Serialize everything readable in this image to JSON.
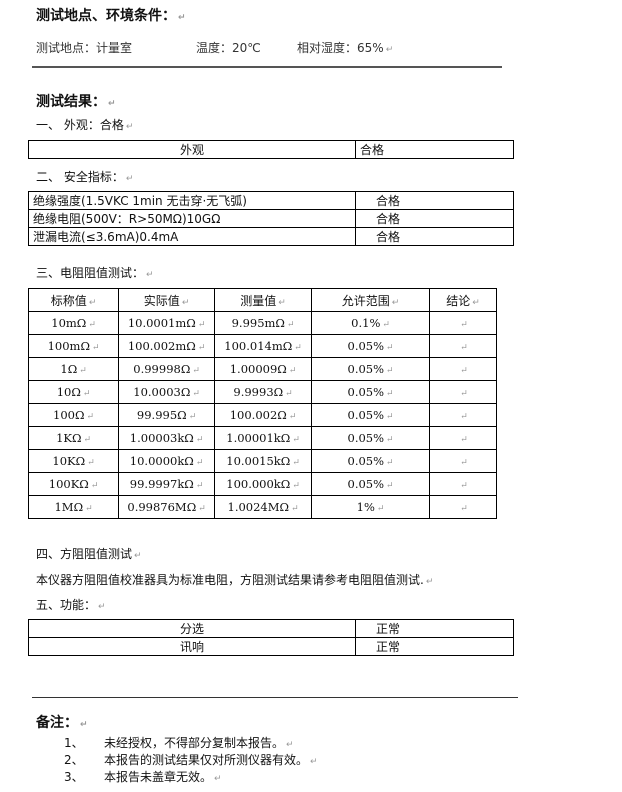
{
  "env": {
    "heading": "测试地点、环境条件：",
    "location": "测试地点：计量室",
    "temperature": "温度：20℃",
    "humidity": "相对湿度：65%"
  },
  "results": {
    "heading": "测试结果：",
    "appearance": {
      "title": "一、  外观：合格",
      "row": [
        "外观",
        "合格"
      ]
    },
    "safety": {
      "title": "二、  安全指标：",
      "rows": [
        [
          "绝缘强度(1.5VKC 1min 无击穿·无飞弧)",
          "合格"
        ],
        [
          "绝缘电阻(500V：R>50MΩ)10GΩ",
          "合格"
        ],
        [
          "泄漏电流(≤3.6mA)0.4mA",
          "合格"
        ]
      ]
    },
    "resistance": {
      "title": "三、电阻阻值测试：",
      "headers": [
        "标称值",
        "实际值",
        "测量值",
        "允许范围",
        "结论"
      ],
      "rows": [
        [
          "10mΩ",
          "10.0001mΩ",
          "9.995mΩ",
          "0.1%",
          ""
        ],
        [
          "100mΩ",
          "100.002mΩ",
          "100.014mΩ",
          "0.05%",
          ""
        ],
        [
          "1Ω",
          "0.99998Ω",
          "1.00009Ω",
          "0.05%",
          ""
        ],
        [
          "10Ω",
          "10.0003Ω",
          "9.9993Ω",
          "0.05%",
          ""
        ],
        [
          "100Ω",
          "99.995Ω",
          "100.002Ω",
          "0.05%",
          ""
        ],
        [
          "1KΩ",
          "1.00003kΩ",
          "1.00001kΩ",
          "0.05%",
          ""
        ],
        [
          "10KΩ",
          "10.0000kΩ",
          "10.0015kΩ",
          "0.05%",
          ""
        ],
        [
          "100KΩ",
          "99.9997kΩ",
          "100.000kΩ",
          "0.05%",
          ""
        ],
        [
          "1MΩ",
          "0.99876MΩ",
          "1.0024MΩ",
          "1%",
          ""
        ]
      ]
    },
    "sheet": {
      "title": "四、方阻阻值测试",
      "text": "本仪器方阻阻值校准器具为标准电阻，方阻测试结果请参考电阻阻值测试."
    },
    "function": {
      "title": "五、功能：",
      "rows": [
        [
          "分选",
          "正常"
        ],
        [
          "讯响",
          "正常"
        ]
      ]
    }
  },
  "notes": {
    "heading": "备注：",
    "items": [
      {
        "num": "1、",
        "text": "未经授权，不得部分复制本报告。"
      },
      {
        "num": "2、",
        "text": "本报告的测试结果仅对所测仪器有效。"
      },
      {
        "num": "3、",
        "text": "本报告未盖章无效。"
      }
    ]
  }
}
